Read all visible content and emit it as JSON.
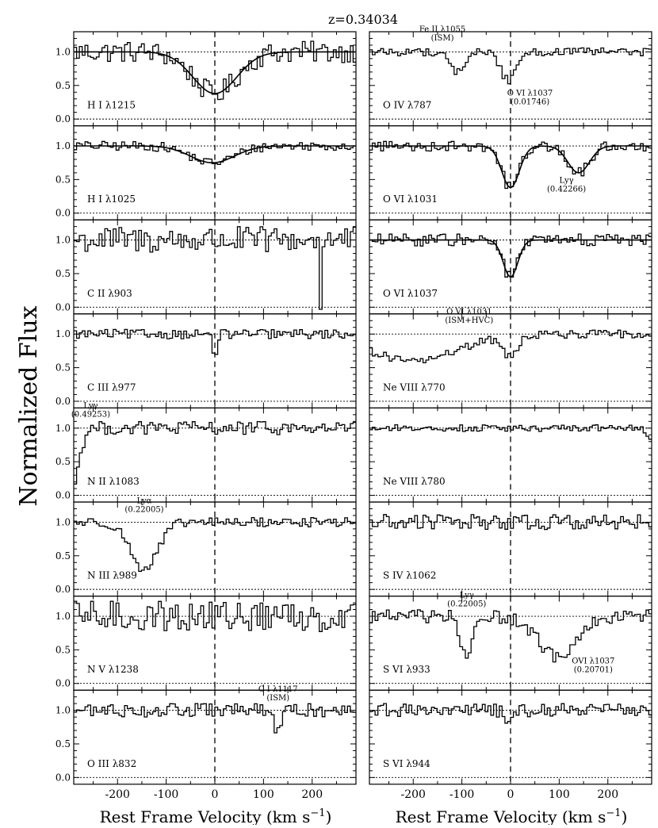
{
  "chart_data": {
    "type": "line",
    "title": "z=0.34034",
    "ylabel": "Normalized Flux",
    "xlabel": "Rest Frame Velocity (km s",
    "xlabel_sup": "−1",
    "xlabel_close": ")",
    "xlim": [
      -290,
      290
    ],
    "ylim": [
      -0.1,
      1.3
    ],
    "xticks": [
      -200,
      -100,
      0,
      100,
      200
    ],
    "yticks": [
      0.0,
      0.5,
      1.0
    ],
    "ytick_labels": [
      "0.0",
      "0.5",
      "1.0"
    ],
    "continuum": 1.0,
    "zero_level": 0.0,
    "systemic_velocity": 0,
    "panels": [
      {
        "col": 0,
        "row": 0,
        "label": "H I λ1215",
        "noise": 0.16,
        "absorptions": [
          {
            "v": 0,
            "depth": 0.62,
            "width": 45
          }
        ],
        "fit": true,
        "annotations": []
      },
      {
        "col": 0,
        "row": 1,
        "label": "H I λ1025",
        "noise": 0.07,
        "absorptions": [
          {
            "v": -5,
            "depth": 0.25,
            "width": 45
          }
        ],
        "fit": true,
        "annotations": []
      },
      {
        "col": 0,
        "row": 2,
        "label": "C II λ903",
        "noise": 0.2,
        "absorptions": [
          {
            "v": 218,
            "depth": 0.9,
            "width": 2
          }
        ],
        "fit": false,
        "annotations": []
      },
      {
        "col": 0,
        "row": 3,
        "label": "C III λ977",
        "noise": 0.07,
        "absorptions": [
          {
            "v": 0,
            "depth": 0.3,
            "width": 5
          }
        ],
        "fit": false,
        "annotations": []
      },
      {
        "col": 0,
        "row": 4,
        "label": "N II λ1083",
        "noise": 0.1,
        "absorptions": [
          {
            "v": -290,
            "depth": 0.8,
            "width": 12
          }
        ],
        "fit": false,
        "annotations": [
          {
            "lines": [
              "Lyγ",
              "(0.49253)"
            ],
            "v": -255,
            "y": 1.35
          }
        ]
      },
      {
        "col": 0,
        "row": 5,
        "label": "N III λ989",
        "noise": 0.07,
        "absorptions": [
          {
            "v": -145,
            "depth": 0.7,
            "width": 28
          }
        ],
        "fit": false,
        "annotations": [
          {
            "lines": [
              "Lyα",
              "(0.22005)"
            ],
            "v": -145,
            "y": 1.28
          }
        ]
      },
      {
        "col": 0,
        "row": 6,
        "label": "N V λ1238",
        "noise": 0.23,
        "absorptions": [],
        "fit": false,
        "annotations": []
      },
      {
        "col": 0,
        "row": 7,
        "label": "O III λ832",
        "noise": 0.1,
        "absorptions": [
          {
            "v": 130,
            "depth": 0.3,
            "width": 8
          }
        ],
        "fit": false,
        "annotations": [
          {
            "lines": [
              "C I λ1117",
              "(ISM)"
            ],
            "v": 130,
            "y": 1.28
          }
        ]
      },
      {
        "col": 1,
        "row": 0,
        "label": "O IV λ787",
        "noise": 0.06,
        "absorptions": [
          {
            "v": -110,
            "depth": 0.3,
            "width": 15
          },
          {
            "v": -5,
            "depth": 0.42,
            "width": 15
          }
        ],
        "fit": false,
        "annotations": [
          {
            "lines": [
              "Fe II λ1055",
              "(ISM)"
            ],
            "v": -140,
            "y": 1.3
          },
          {
            "lines": [
              "O VI λ1037",
              "(0.01746)"
            ],
            "v": 40,
            "y": 0.35
          }
        ]
      },
      {
        "col": 1,
        "row": 1,
        "label": "O VI λ1031",
        "noise": 0.08,
        "absorptions": [
          {
            "v": 0,
            "depth": 0.62,
            "width": 18
          },
          {
            "v": 140,
            "depth": 0.4,
            "width": 22
          }
        ],
        "fit": true,
        "annotations": [
          {
            "lines": [
              "Lyγ",
              "(0.42266)"
            ],
            "v": 115,
            "y": 0.45
          }
        ]
      },
      {
        "col": 1,
        "row": 2,
        "label": "O VI λ1037",
        "noise": 0.09,
        "absorptions": [
          {
            "v": 0,
            "depth": 0.55,
            "width": 15
          }
        ],
        "fit": true,
        "annotations": []
      },
      {
        "col": 1,
        "row": 3,
        "label": "Ne VIII λ770",
        "noise": 0.06,
        "absorptions": [
          {
            "v": -200,
            "depth": 0.4,
            "width": 90
          },
          {
            "v": 0,
            "depth": 0.3,
            "width": 15
          }
        ],
        "fit": false,
        "annotations": [
          {
            "lines": [
              "O VI λ1031",
              "(ISM+HVC)"
            ],
            "v": -85,
            "y": 1.3
          }
        ]
      },
      {
        "col": 1,
        "row": 4,
        "label": "Ne VIII λ780",
        "noise": 0.05,
        "absorptions": [
          {
            "v": 285,
            "depth": 0.2,
            "width": 6
          }
        ],
        "fit": false,
        "annotations": []
      },
      {
        "col": 1,
        "row": 5,
        "label": "S IV λ1062",
        "noise": 0.12,
        "absorptions": [],
        "fit": false,
        "annotations": []
      },
      {
        "col": 1,
        "row": 6,
        "label": "S VI λ933",
        "noise": 0.1,
        "absorptions": [
          {
            "v": -90,
            "depth": 0.65,
            "width": 12
          },
          {
            "v": 95,
            "depth": 0.6,
            "width": 38
          }
        ],
        "fit": false,
        "annotations": [
          {
            "lines": [
              "Lyγ",
              "(0.22005)"
            ],
            "v": -90,
            "y": 1.28
          },
          {
            "lines": [
              "OVI λ1037",
              "(0.20701)"
            ],
            "v": 170,
            "y": 0.3
          }
        ]
      },
      {
        "col": 1,
        "row": 7,
        "label": "S VI λ944",
        "noise": 0.1,
        "absorptions": [
          {
            "v": 0,
            "depth": 0.2,
            "width": 8
          }
        ],
        "fit": false,
        "annotations": []
      }
    ]
  }
}
